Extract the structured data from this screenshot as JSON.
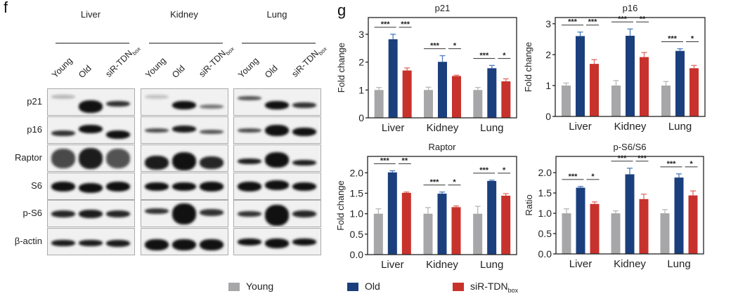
{
  "panel_f": {
    "letter": "f",
    "tissues": [
      "Liver",
      "Kidney",
      "Lung"
    ],
    "lanes": [
      {
        "main": "Young",
        "sub": ""
      },
      {
        "main": "Old",
        "sub": ""
      },
      {
        "main": "siR-TDN",
        "sub": "box"
      }
    ],
    "proteins": [
      "p21",
      "p16",
      "Raptor",
      "S6",
      "p-S6",
      "β-actin"
    ]
  },
  "panel_g": {
    "letter": "g"
  },
  "legend": [
    {
      "label": "Young",
      "sub": "",
      "color": "#a7a7a9"
    },
    {
      "label": "Old",
      "sub": "",
      "color": "#1b3f7d"
    },
    {
      "label": "siR-TDN",
      "sub": "box",
      "color": "#c8322d"
    }
  ],
  "chart_data": [
    {
      "type": "bar",
      "title": "p21",
      "ylabel": "Fold change",
      "xlabel": "",
      "categories": [
        "Liver",
        "Kidney",
        "Lung"
      ],
      "ylim": [
        0,
        3.6
      ],
      "yticks": [
        "0",
        "1",
        "2",
        "3"
      ],
      "ytick_values": [
        0,
        1,
        2,
        3
      ],
      "series": [
        {
          "name": "Young",
          "values": [
            1.0,
            1.0,
            1.0
          ],
          "errors": [
            0.09,
            0.1,
            0.09
          ]
        },
        {
          "name": "Old",
          "values": [
            2.82,
            2.01,
            1.78
          ],
          "errors": [
            0.18,
            0.22,
            0.1
          ]
        },
        {
          "name": "siR-TDNbox",
          "values": [
            1.7,
            1.5,
            1.31
          ],
          "errors": [
            0.09,
            0.03,
            0.09
          ]
        }
      ],
      "significance": [
        [
          "***",
          "***"
        ],
        [
          "***",
          "*"
        ],
        [
          "***",
          "*"
        ]
      ]
    },
    {
      "type": "bar",
      "title": "p16",
      "ylabel": "Fold change",
      "xlabel": "",
      "categories": [
        "Liver",
        "Kidney",
        "Lung"
      ],
      "ylim": [
        0,
        3.2
      ],
      "yticks": [
        "0",
        "1",
        "2",
        "3"
      ],
      "ytick_values": [
        0,
        1,
        2,
        3
      ],
      "series": [
        {
          "name": "Young",
          "values": [
            1.0,
            1.0,
            1.0
          ],
          "errors": [
            0.08,
            0.16,
            0.13
          ]
        },
        {
          "name": "Old",
          "values": [
            2.6,
            2.61,
            2.12
          ],
          "errors": [
            0.13,
            0.22,
            0.07
          ]
        },
        {
          "name": "siR-TDNbox",
          "values": [
            1.7,
            1.92,
            1.56
          ],
          "errors": [
            0.14,
            0.15,
            0.09
          ]
        }
      ],
      "significance": [
        [
          "***",
          "***"
        ],
        [
          "***",
          "**"
        ],
        [
          "***",
          "*"
        ]
      ]
    },
    {
      "type": "bar",
      "title": "Raptor",
      "ylabel": "Fold change",
      "xlabel": "",
      "categories": [
        "Liver",
        "Kidney",
        "Lung"
      ],
      "ylim": [
        0,
        2.4
      ],
      "yticks": [
        "0.0",
        "0.5",
        "1.0",
        "1.5",
        "2.0"
      ],
      "ytick_values": [
        0,
        0.5,
        1.0,
        1.5,
        2.0
      ],
      "series": [
        {
          "name": "Young",
          "values": [
            1.0,
            1.0,
            1.0
          ],
          "errors": [
            0.12,
            0.15,
            0.18
          ]
        },
        {
          "name": "Old",
          "values": [
            2.01,
            1.49,
            1.8
          ],
          "errors": [
            0.04,
            0.04,
            0.02
          ]
        },
        {
          "name": "siR-TDNbox",
          "values": [
            1.51,
            1.16,
            1.44
          ],
          "errors": [
            0.02,
            0.03,
            0.05
          ]
        }
      ],
      "significance": [
        [
          "***",
          "**"
        ],
        [
          "***",
          "*"
        ],
        [
          "***",
          "*"
        ]
      ]
    },
    {
      "type": "bar",
      "title": "p-S6/S6",
      "ylabel": "Ratio",
      "xlabel": "",
      "categories": [
        "Liver",
        "Kidney",
        "Lung"
      ],
      "ylim": [
        0,
        2.4
      ],
      "yticks": [
        "0.0",
        "0.5",
        "1.0",
        "1.5",
        "2.0"
      ],
      "ytick_values": [
        0,
        0.5,
        1.0,
        1.5,
        2.0
      ],
      "series": [
        {
          "name": "Young",
          "values": [
            1.0,
            1.0,
            1.0
          ],
          "errors": [
            0.11,
            0.06,
            0.09
          ]
        },
        {
          "name": "Old",
          "values": [
            1.63,
            1.96,
            1.88
          ],
          "errors": [
            0.03,
            0.15,
            0.09
          ]
        },
        {
          "name": "siR-TDNbox",
          "values": [
            1.23,
            1.35,
            1.44
          ],
          "errors": [
            0.05,
            0.12,
            0.11
          ]
        }
      ],
      "significance": [
        [
          "***",
          "*"
        ],
        [
          "***",
          "***"
        ],
        [
          "***",
          "*"
        ]
      ]
    }
  ]
}
